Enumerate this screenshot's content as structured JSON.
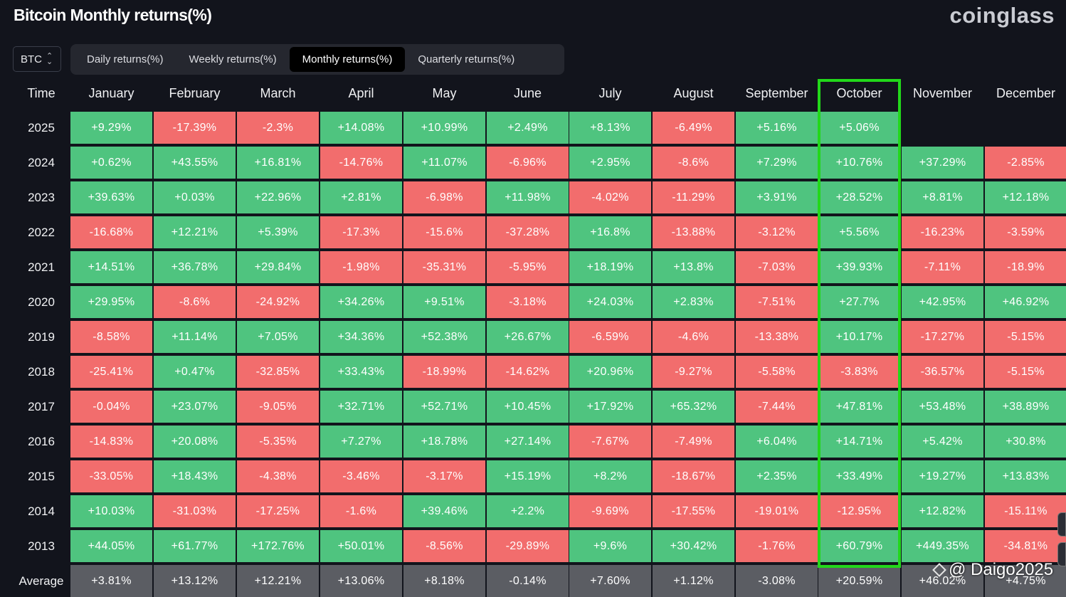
{
  "title": "Bitcoin Monthly returns(%)",
  "brand": "coinglass",
  "coin_select": {
    "value": "BTC",
    "icon": "chevron-updown-icon"
  },
  "tabs": [
    {
      "label": "Daily returns(%)",
      "active": false
    },
    {
      "label": "Weekly returns(%)",
      "active": false
    },
    {
      "label": "Monthly returns(%)",
      "active": true
    },
    {
      "label": "Quarterly returns(%)",
      "active": false
    }
  ],
  "table": {
    "time_header": "Time",
    "months": [
      "January",
      "February",
      "March",
      "April",
      "May",
      "June",
      "July",
      "August",
      "September",
      "October",
      "November",
      "December"
    ],
    "highlighted_month": "October",
    "rows": [
      {
        "year": "2025",
        "values": [
          "+9.29%",
          "-17.39%",
          "-2.3%",
          "+14.08%",
          "+10.99%",
          "+2.49%",
          "+8.13%",
          "-6.49%",
          "+5.16%",
          "+5.06%",
          "",
          ""
        ]
      },
      {
        "year": "2024",
        "values": [
          "+0.62%",
          "+43.55%",
          "+16.81%",
          "-14.76%",
          "+11.07%",
          "-6.96%",
          "+2.95%",
          "-8.6%",
          "+7.29%",
          "+10.76%",
          "+37.29%",
          "-2.85%"
        ]
      },
      {
        "year": "2023",
        "values": [
          "+39.63%",
          "+0.03%",
          "+22.96%",
          "+2.81%",
          "-6.98%",
          "+11.98%",
          "-4.02%",
          "-11.29%",
          "+3.91%",
          "+28.52%",
          "+8.81%",
          "+12.18%"
        ]
      },
      {
        "year": "2022",
        "values": [
          "-16.68%",
          "+12.21%",
          "+5.39%",
          "-17.3%",
          "-15.6%",
          "-37.28%",
          "+16.8%",
          "-13.88%",
          "-3.12%",
          "+5.56%",
          "-16.23%",
          "-3.59%"
        ]
      },
      {
        "year": "2021",
        "values": [
          "+14.51%",
          "+36.78%",
          "+29.84%",
          "-1.98%",
          "-35.31%",
          "-5.95%",
          "+18.19%",
          "+13.8%",
          "-7.03%",
          "+39.93%",
          "-7.11%",
          "-18.9%"
        ]
      },
      {
        "year": "2020",
        "values": [
          "+29.95%",
          "-8.6%",
          "-24.92%",
          "+34.26%",
          "+9.51%",
          "-3.18%",
          "+24.03%",
          "+2.83%",
          "-7.51%",
          "+27.7%",
          "+42.95%",
          "+46.92%"
        ]
      },
      {
        "year": "2019",
        "values": [
          "-8.58%",
          "+11.14%",
          "+7.05%",
          "+34.36%",
          "+52.38%",
          "+26.67%",
          "-6.59%",
          "-4.6%",
          "-13.38%",
          "+10.17%",
          "-17.27%",
          "-5.15%"
        ]
      },
      {
        "year": "2018",
        "values": [
          "-25.41%",
          "+0.47%",
          "-32.85%",
          "+33.43%",
          "-18.99%",
          "-14.62%",
          "+20.96%",
          "-9.27%",
          "-5.58%",
          "-3.83%",
          "-36.57%",
          "-5.15%"
        ]
      },
      {
        "year": "2017",
        "values": [
          "-0.04%",
          "+23.07%",
          "-9.05%",
          "+32.71%",
          "+52.71%",
          "+10.45%",
          "+17.92%",
          "+65.32%",
          "-7.44%",
          "+47.81%",
          "+53.48%",
          "+38.89%"
        ]
      },
      {
        "year": "2016",
        "values": [
          "-14.83%",
          "+20.08%",
          "-5.35%",
          "+7.27%",
          "+18.78%",
          "+27.14%",
          "-7.67%",
          "-7.49%",
          "+6.04%",
          "+14.71%",
          "+5.42%",
          "+30.8%"
        ]
      },
      {
        "year": "2015",
        "values": [
          "-33.05%",
          "+18.43%",
          "-4.38%",
          "-3.46%",
          "-3.17%",
          "+15.19%",
          "+8.2%",
          "-18.67%",
          "+2.35%",
          "+33.49%",
          "+19.27%",
          "+13.83%"
        ]
      },
      {
        "year": "2014",
        "values": [
          "+10.03%",
          "-31.03%",
          "-17.25%",
          "-1.6%",
          "+39.46%",
          "+2.2%",
          "-9.69%",
          "-17.55%",
          "-19.01%",
          "-12.95%",
          "+12.82%",
          "-15.11%"
        ]
      },
      {
        "year": "2013",
        "values": [
          "+44.05%",
          "+61.77%",
          "+172.76%",
          "+50.01%",
          "-8.56%",
          "-29.89%",
          "+9.6%",
          "+30.42%",
          "-1.76%",
          "+60.79%",
          "+449.35%",
          "-34.81%"
        ]
      }
    ],
    "average": {
      "label": "Average",
      "values": [
        "+3.81%",
        "+13.12%",
        "+12.21%",
        "+13.06%",
        "+8.18%",
        "-0.14%",
        "+7.60%",
        "+1.12%",
        "-3.08%",
        "+20.59%",
        "+46.02%",
        "+4.75%"
      ]
    }
  },
  "colors": {
    "positive": "#4fc47f",
    "negative": "#f26d6d",
    "average": "#5b5d63",
    "highlight": "#22d81a",
    "background": "#12141c"
  },
  "watermark": "@ Daigo2025"
}
